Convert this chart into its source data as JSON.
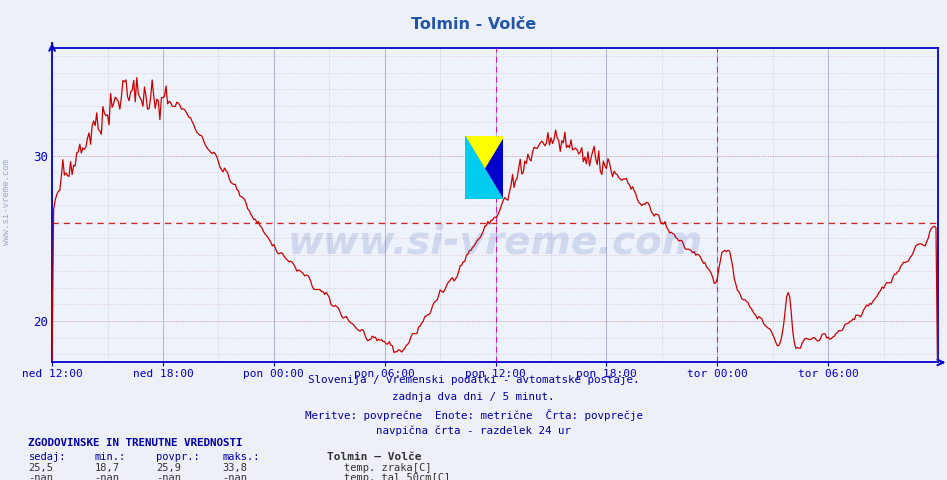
{
  "title": "Tolmin - Volče",
  "title_color": "#2255aa",
  "bg_color": "#eef0f8",
  "plot_bg_color": "#eef2fa",
  "line_color": "#cc0000",
  "avg_line_color": "#cc0000",
  "avg_value": 25.9,
  "ymin": 17.5,
  "ymax": 36.5,
  "yticks": [
    20,
    30
  ],
  "axis_color": "#0000cc",
  "grid_color_h": "#cc9999",
  "grid_color_v": "#aaaacc",
  "vline_color": "#cc00cc",
  "text_below": [
    "Slovenija / vremenski podatki - avtomatske postaje.",
    "zadnja dva dni / 5 minut.",
    "Meritve: povprečne  Enote: metrične  Črta: povprečje",
    "navpična črta - razdelek 24 ur"
  ],
  "text_below_color": "#0000aa",
  "bottom_header": "ZGODOVINSKE IN TRENUTNE VREDNOSTI",
  "bottom_header_color": "#0000aa",
  "bottom_cols": [
    "sedaj:",
    "min.:",
    "povpr.:",
    "maks.:"
  ],
  "bottom_vals1": [
    "25,5",
    "18,7",
    "25,9",
    "33,8"
  ],
  "bottom_vals2": [
    "-nan",
    "-nan",
    "-nan",
    "-nan"
  ],
  "legend_label1": "temp. zraka[C]",
  "legend_color1": "#cc0000",
  "legend_label2": "temp. tal 50cm[C]",
  "legend_color2": "#4d2600",
  "station_label": "Tolmin – Volče",
  "watermark": "www.si-vreme.com",
  "n_points": 576,
  "x_tick_labels": [
    "ned 12:00",
    "ned 18:00",
    "pon 00:00",
    "pon 06:00",
    "pon 12:00",
    "pon 18:00",
    "tor 00:00",
    "tor 06:00"
  ],
  "x_tick_positions": [
    0,
    72,
    144,
    216,
    288,
    360,
    432,
    504
  ],
  "vline_positions": [
    288,
    432
  ],
  "sidebar_text": "www.si-vreme.com"
}
